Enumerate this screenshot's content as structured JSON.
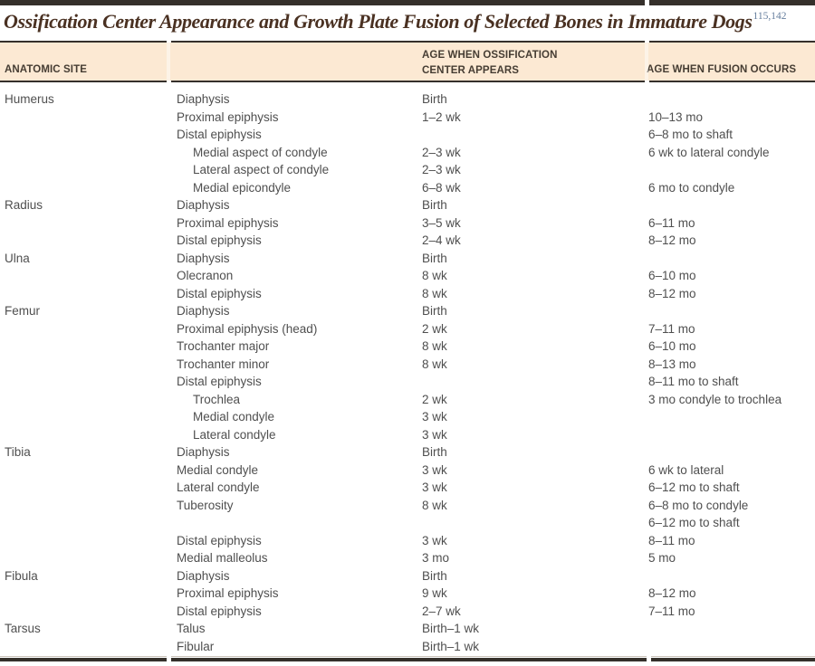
{
  "colors": {
    "rule": "#35302b",
    "band": "#fce9d3",
    "title": "#4a3122",
    "citation": "#68809f",
    "header_text": "#463d33",
    "body_text": "#4f4f4f"
  },
  "title": {
    "text": "Ossification Center Appearance and Growth Plate Fusion of Selected Bones in Immature Dogs",
    "citation": "115,142"
  },
  "table": {
    "headers": {
      "site": "ANATOMIC SITE",
      "appears_line1": "AGE WHEN OSSIFICATION",
      "appears_line2": "CENTER APPEARS",
      "fusion": "AGE WHEN FUSION OCCURS"
    },
    "rows": [
      {
        "site": "Humerus",
        "part": "Diaphysis",
        "indent": 0,
        "appears": "Birth",
        "fusion": ""
      },
      {
        "site": "",
        "part": "Proximal epiphysis",
        "indent": 0,
        "appears": "1–2 wk",
        "fusion": "10–13 mo"
      },
      {
        "site": "",
        "part": "Distal epiphysis",
        "indent": 0,
        "appears": "",
        "fusion": "6–8 mo to shaft"
      },
      {
        "site": "",
        "part": "Medial aspect of condyle",
        "indent": 1,
        "appears": "2–3 wk",
        "fusion": "6 wk to lateral condyle"
      },
      {
        "site": "",
        "part": "Lateral aspect of condyle",
        "indent": 1,
        "appears": "2–3 wk",
        "fusion": ""
      },
      {
        "site": "",
        "part": "Medial epicondyle",
        "indent": 1,
        "appears": "6–8 wk",
        "fusion": "6 mo to condyle"
      },
      {
        "site": "Radius",
        "part": "Diaphysis",
        "indent": 0,
        "appears": "Birth",
        "fusion": ""
      },
      {
        "site": "",
        "part": "Proximal epiphysis",
        "indent": 0,
        "appears": "3–5 wk",
        "fusion": "6–11 mo"
      },
      {
        "site": "",
        "part": "Distal epiphysis",
        "indent": 0,
        "appears": "2–4 wk",
        "fusion": "8–12 mo"
      },
      {
        "site": "Ulna",
        "part": "Diaphysis",
        "indent": 0,
        "appears": "Birth",
        "fusion": ""
      },
      {
        "site": "",
        "part": "Olecranon",
        "indent": 0,
        "appears": "8 wk",
        "fusion": "6–10 mo"
      },
      {
        "site": "",
        "part": "Distal epiphysis",
        "indent": 0,
        "appears": "8 wk",
        "fusion": "8–12 mo"
      },
      {
        "site": "Femur",
        "part": "Diaphysis",
        "indent": 0,
        "appears": "Birth",
        "fusion": ""
      },
      {
        "site": "",
        "part": "Proximal epiphysis (head)",
        "indent": 0,
        "appears": "2 wk",
        "fusion": "7–11 mo"
      },
      {
        "site": "",
        "part": "Trochanter major",
        "indent": 0,
        "appears": "8 wk",
        "fusion": "6–10 mo"
      },
      {
        "site": "",
        "part": "Trochanter minor",
        "indent": 0,
        "appears": "8 wk",
        "fusion": "8–13 mo"
      },
      {
        "site": "",
        "part": "Distal epiphysis",
        "indent": 0,
        "appears": "",
        "fusion": "8–11 mo to shaft"
      },
      {
        "site": "",
        "part": "Trochlea",
        "indent": 1,
        "appears": "2 wk",
        "fusion": "3 mo condyle to trochlea"
      },
      {
        "site": "",
        "part": "Medial condyle",
        "indent": 1,
        "appears": "3 wk",
        "fusion": ""
      },
      {
        "site": "",
        "part": "Lateral condyle",
        "indent": 1,
        "appears": "3 wk",
        "fusion": ""
      },
      {
        "site": "Tibia",
        "part": "Diaphysis",
        "indent": 0,
        "appears": "Birth",
        "fusion": ""
      },
      {
        "site": "",
        "part": "Medial condyle",
        "indent": 0,
        "appears": "3 wk",
        "fusion": "6 wk to lateral"
      },
      {
        "site": "",
        "part": "Lateral condyle",
        "indent": 0,
        "appears": "3 wk",
        "fusion": "6–12 mo to shaft"
      },
      {
        "site": "",
        "part": "Tuberosity",
        "indent": 0,
        "appears": "8 wk",
        "fusion": "6–8 mo to condyle"
      },
      {
        "site": "",
        "part": "",
        "indent": 0,
        "appears": "",
        "fusion": "6–12 mo to shaft"
      },
      {
        "site": "",
        "part": "Distal epiphysis",
        "indent": 0,
        "appears": "3 wk",
        "fusion": "8–11 mo"
      },
      {
        "site": "",
        "part": "Medial malleolus",
        "indent": 0,
        "appears": "3 mo",
        "fusion": "5 mo"
      },
      {
        "site": "Fibula",
        "part": "Diaphysis",
        "indent": 0,
        "appears": "Birth",
        "fusion": ""
      },
      {
        "site": "",
        "part": "Proximal epiphysis",
        "indent": 0,
        "appears": "9 wk",
        "fusion": "8–12 mo"
      },
      {
        "site": "",
        "part": "Distal epiphysis",
        "indent": 0,
        "appears": "2–7 wk",
        "fusion": "7–11 mo"
      },
      {
        "site": "Tarsus",
        "part": "Talus",
        "indent": 0,
        "appears": "Birth–1 wk",
        "fusion": ""
      },
      {
        "site": "",
        "part": "Fibular",
        "indent": 0,
        "appears": "Birth–1 wk",
        "fusion": ""
      }
    ]
  }
}
